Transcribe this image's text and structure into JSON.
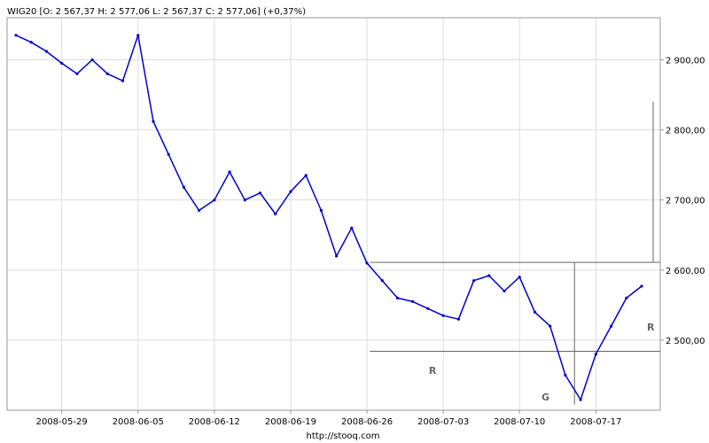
{
  "header": {
    "quote_line": "WIG20 [O: 2 567,37  H: 2 577,06  L: 2 567,37  C: 2 577,06] (+0,37%)"
  },
  "footer": {
    "source_label": "http://stooq.com"
  },
  "colors": {
    "series": "#0000cc",
    "grid": "#dddddd",
    "frame": "#999999",
    "annotation_lines": "#666666"
  },
  "annotations": {
    "labels": [
      {
        "text": "R",
        "date_index": 27.3,
        "price": 2452
      },
      {
        "text": "G",
        "date_index": 34.7,
        "price": 2414
      },
      {
        "text": "R",
        "date_index": 41.6,
        "price": 2514
      }
    ],
    "resistance_level": 2611,
    "support_level": 2484,
    "vertical_marker_index": 36.6,
    "right_vertical_top": 2840
  },
  "chart_data": {
    "type": "line",
    "title": "WIG20",
    "xlabel": "",
    "ylabel": "",
    "x_ticks": [
      "2008-05-29",
      "2008-06-05",
      "2008-06-12",
      "2008-06-19",
      "2008-06-26",
      "2008-07-03",
      "2008-07-10",
      "2008-07-17"
    ],
    "y_ticks": [
      "2 500,00",
      "2 600,00",
      "2 700,00",
      "2 800,00",
      "2 900,00"
    ],
    "y_tick_values": [
      2500,
      2600,
      2700,
      2800,
      2900
    ],
    "ylim": [
      2400,
      2960
    ],
    "grid": true,
    "y_axis_position": "right",
    "series": [
      {
        "x": [
          "2008-05-26",
          "2008-05-27",
          "2008-05-28",
          "2008-05-29",
          "2008-05-30",
          "2008-06-02",
          "2008-06-03",
          "2008-06-04",
          "2008-06-05",
          "2008-06-06",
          "2008-06-09",
          "2008-06-10",
          "2008-06-11",
          "2008-06-12",
          "2008-06-13",
          "2008-06-16",
          "2008-06-17",
          "2008-06-18",
          "2008-06-19",
          "2008-06-20",
          "2008-06-23",
          "2008-06-24",
          "2008-06-25",
          "2008-06-26",
          "2008-06-27",
          "2008-06-30",
          "2008-07-01",
          "2008-07-02",
          "2008-07-03",
          "2008-07-04",
          "2008-07-07",
          "2008-07-08",
          "2008-07-09",
          "2008-07-10",
          "2008-07-11",
          "2008-07-14",
          "2008-07-15",
          "2008-07-16",
          "2008-07-17",
          "2008-07-18",
          "2008-07-21",
          "2008-07-22"
        ],
        "values": [
          2935,
          2925,
          2912,
          2895,
          2880,
          2900,
          2880,
          2870,
          2935,
          2812,
          2765,
          2718,
          2685,
          2700,
          2740,
          2700,
          2710,
          2680,
          2712,
          2735,
          2685,
          2620,
          2660,
          2610,
          2585,
          2560,
          2555,
          2545,
          2535,
          2530,
          2585,
          2592,
          2570,
          2590,
          2540,
          2520,
          2450,
          2415,
          2480,
          2520,
          2560,
          2577
        ]
      }
    ]
  }
}
